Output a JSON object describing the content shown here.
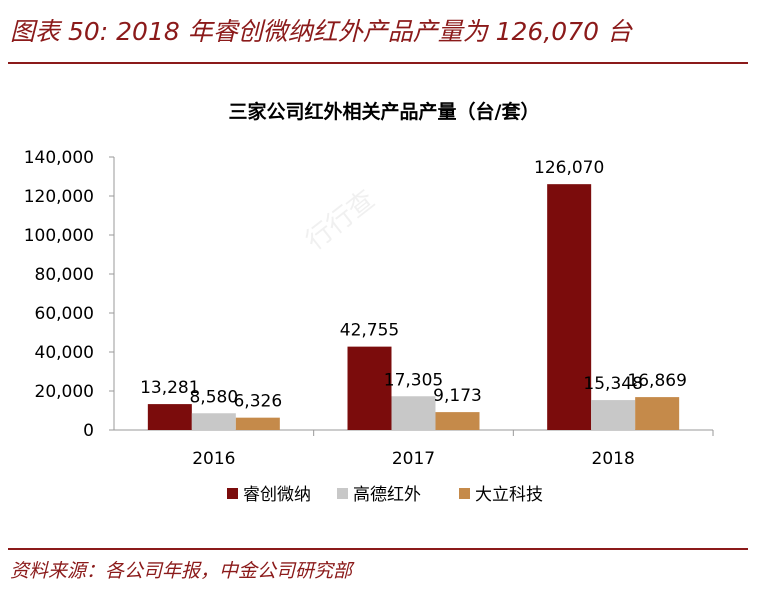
{
  "figure_title": "图表 50: 2018 年睿创微纳红外产品产量为 126,070 台",
  "source": "资料来源：各公司年报，中金公司研究部",
  "watermark": "行行查",
  "chart_data": {
    "type": "bar",
    "title": "三家公司红外相关产品产量（台/套）",
    "categories": [
      "2016",
      "2017",
      "2018"
    ],
    "series": [
      {
        "name": "睿创微纳",
        "values": [
          13281,
          42755,
          126070
        ],
        "color": "#7b0c0c",
        "labels": [
          "13,281",
          "42,755",
          "126,070"
        ]
      },
      {
        "name": "高德红外",
        "values": [
          8580,
          17305,
          15348
        ],
        "color": "#c8c8c8",
        "labels": [
          "8,580",
          "17,305",
          "15,348"
        ]
      },
      {
        "name": "大立科技",
        "values": [
          6326,
          9173,
          16869
        ],
        "color": "#c58a4a",
        "labels": [
          "6,326",
          "9,173",
          "16,869"
        ]
      }
    ],
    "ylim": [
      0,
      140000
    ],
    "yticks": [
      "0",
      "20,000",
      "40,000",
      "60,000",
      "80,000",
      "100,000",
      "120,000",
      "140,000"
    ],
    "ytick_values": [
      0,
      20000,
      40000,
      60000,
      80000,
      100000,
      120000,
      140000
    ],
    "legend_position": "bottom",
    "grid": false
  }
}
